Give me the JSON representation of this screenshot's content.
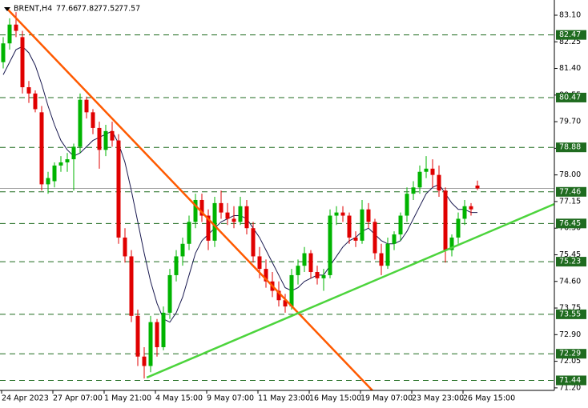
{
  "chart_data": {
    "type": "candlestick",
    "symbol": "BRENT,H4",
    "up_color": "#00b400",
    "down_color": "#e00000",
    "level_color": "#1f6b1f",
    "ma_color": "#1a1a50",
    "xlim": [
      -0.5,
      86
    ],
    "ylim": [
      71.12,
      83.585
    ],
    "yticks": [
      {
        "value": 83.1,
        "label": "83.10"
      },
      82.25,
      {
        "value": 81.4,
        "label": "81.40"
      },
      80.55,
      {
        "value": 79.7,
        "label": "79.70"
      },
      78.85,
      {
        "value": 78,
        "label": "78.00"
      },
      77.15,
      {
        "value": 76.3,
        "label": "76.30"
      },
      75.45,
      {
        "value": 74.6,
        "label": "74.60"
      },
      73.75,
      {
        "value": 72.9,
        "label": "72.90"
      },
      72.05,
      {
        "value": 71.2,
        "label": "71.20"
      }
    ],
    "levels": [
      82.47,
      80.47,
      78.88,
      77.46,
      76.45,
      75.23,
      73.55,
      72.29,
      71.44
    ],
    "current_price": 77.57,
    "categories": [
      "24 Apr 2023",
      null,
      null,
      null,
      null,
      null,
      null,
      null,
      "27 Apr 07:00",
      null,
      null,
      null,
      null,
      null,
      null,
      null,
      "1 May 21:00",
      null,
      null,
      null,
      null,
      null,
      null,
      null,
      "4 May 15:00",
      null,
      null,
      null,
      null,
      null,
      null,
      null,
      "9 May 07:00",
      null,
      null,
      null,
      null,
      null,
      null,
      null,
      "11 May 23:00",
      null,
      null,
      null,
      null,
      null,
      null,
      null,
      "16 May 15:00",
      null,
      null,
      null,
      null,
      null,
      null,
      null,
      "19 May 07:00",
      null,
      null,
      null,
      null,
      null,
      null,
      null,
      "23 May 23:00",
      null,
      null,
      null,
      null,
      null,
      null,
      null,
      "26 May 15:00",
      null,
      null
    ],
    "candles": [
      [
        81.6,
        82.4,
        81.4,
        82.2
      ],
      [
        82.2,
        83.0,
        82.0,
        82.8
      ],
      [
        82.8,
        83.2,
        82.4,
        82.6
      ],
      [
        82.4,
        82.6,
        80.6,
        80.8
      ],
      [
        80.8,
        81.0,
        80.3,
        80.6
      ],
      [
        80.6,
        80.7,
        80.0,
        80.1
      ],
      [
        80.0,
        80.2,
        77.5,
        77.7
      ],
      [
        77.7,
        78.1,
        77.4,
        77.9
      ],
      [
        77.8,
        78.4,
        77.6,
        78.3
      ],
      [
        78.3,
        78.6,
        78.1,
        78.4
      ],
      [
        78.4,
        78.7,
        78.1,
        78.5
      ],
      [
        78.5,
        79.0,
        77.5,
        78.9
      ],
      [
        78.9,
        80.6,
        78.7,
        80.4
      ],
      [
        80.4,
        80.5,
        79.8,
        80.0
      ],
      [
        80.0,
        80.1,
        79.3,
        79.5
      ],
      [
        79.5,
        79.7,
        78.2,
        78.8
      ],
      [
        78.8,
        79.6,
        78.6,
        79.4
      ],
      [
        79.4,
        79.7,
        78.9,
        79.1
      ],
      [
        79.1,
        79.3,
        75.8,
        76.0
      ],
      [
        76.0,
        76.3,
        75.2,
        75.4
      ],
      [
        75.4,
        75.6,
        73.3,
        73.5
      ],
      [
        73.5,
        73.7,
        71.9,
        72.2
      ],
      [
        72.2,
        72.5,
        71.5,
        71.9
      ],
      [
        71.9,
        73.5,
        71.7,
        73.3
      ],
      [
        73.3,
        73.4,
        72.2,
        72.5
      ],
      [
        72.5,
        73.8,
        72.4,
        73.6
      ],
      [
        73.6,
        75.0,
        73.4,
        74.8
      ],
      [
        74.8,
        75.6,
        74.6,
        75.4
      ],
      [
        75.4,
        76.0,
        75.1,
        75.8
      ],
      [
        75.8,
        76.7,
        75.6,
        76.5
      ],
      [
        76.5,
        77.4,
        76.3,
        77.2
      ],
      [
        77.2,
        77.4,
        76.5,
        76.7
      ],
      [
        76.7,
        76.9,
        75.6,
        75.9
      ],
      [
        75.9,
        77.3,
        75.7,
        77.1
      ],
      [
        77.1,
        77.5,
        76.6,
        76.8
      ],
      [
        76.8,
        77.1,
        76.4,
        76.6
      ],
      [
        76.6,
        77.0,
        76.3,
        76.5
      ],
      [
        76.5,
        77.3,
        76.4,
        77.0
      ],
      [
        77.0,
        77.2,
        76.1,
        76.3
      ],
      [
        76.3,
        76.5,
        75.2,
        75.4
      ],
      [
        75.4,
        75.7,
        74.7,
        75.0
      ],
      [
        75.0,
        75.3,
        74.4,
        74.6
      ],
      [
        74.6,
        74.9,
        74.1,
        74.3
      ],
      [
        74.3,
        74.6,
        73.8,
        74.0
      ],
      [
        74.0,
        74.2,
        73.6,
        73.8
      ],
      [
        73.8,
        75.0,
        73.7,
        74.8
      ],
      [
        74.8,
        75.3,
        74.5,
        75.1
      ],
      [
        75.1,
        75.7,
        74.9,
        75.5
      ],
      [
        75.5,
        75.6,
        74.7,
        74.9
      ],
      [
        74.9,
        75.1,
        74.5,
        74.7
      ],
      [
        74.7,
        75.0,
        74.3,
        74.8
      ],
      [
        74.8,
        76.9,
        74.7,
        76.7
      ],
      [
        76.7,
        77.0,
        76.4,
        76.8
      ],
      [
        76.8,
        77.0,
        76.5,
        76.7
      ],
      [
        76.7,
        76.8,
        75.8,
        76.0
      ],
      [
        76.0,
        76.2,
        75.7,
        75.9
      ],
      [
        75.9,
        77.2,
        75.8,
        76.9
      ],
      [
        76.9,
        77.1,
        76.3,
        76.5
      ],
      [
        76.5,
        76.6,
        75.3,
        75.5
      ],
      [
        75.5,
        75.8,
        74.8,
        75.1
      ],
      [
        75.1,
        76.0,
        75.0,
        75.8
      ],
      [
        75.8,
        76.2,
        75.6,
        76.1
      ],
      [
        76.1,
        76.8,
        75.9,
        76.7
      ],
      [
        76.7,
        77.6,
        76.5,
        77.4
      ],
      [
        77.4,
        77.8,
        77.2,
        77.6
      ],
      [
        77.6,
        78.3,
        77.4,
        78.1
      ],
      [
        78.1,
        78.6,
        77.9,
        78.2
      ],
      [
        78.2,
        78.5,
        77.6,
        78.0
      ],
      [
        78.0,
        78.3,
        77.3,
        77.5
      ],
      [
        77.5,
        77.6,
        75.2,
        75.6
      ],
      [
        75.6,
        76.1,
        75.4,
        76.0
      ],
      [
        76.0,
        76.8,
        75.8,
        76.6
      ],
      [
        76.6,
        77.2,
        76.4,
        77.0
      ],
      [
        77.0,
        77.1,
        76.7,
        76.9
      ],
      [
        77.66,
        77.82,
        77.52,
        77.57
      ]
    ],
    "ma_values": [
      81.2,
      81.6,
      82.0,
      82.1,
      81.9,
      81.5,
      80.9,
      80.2,
      79.6,
      79.1,
      78.8,
      78.6,
      78.7,
      78.9,
      79.1,
      79.2,
      79.3,
      79.4,
      79.0,
      78.4,
      77.5,
      76.5,
      75.5,
      74.6,
      73.9,
      73.4,
      73.3,
      73.6,
      74.1,
      74.8,
      75.5,
      75.9,
      76.1,
      76.3,
      76.5,
      76.6,
      76.7,
      76.7,
      76.6,
      76.3,
      76.0,
      75.6,
      75.2,
      74.8,
      74.4,
      74.3,
      74.4,
      74.6,
      74.7,
      74.8,
      74.8,
      75.1,
      75.4,
      75.7,
      75.9,
      76.0,
      76.2,
      76.3,
      76.1,
      75.9,
      75.8,
      75.8,
      75.9,
      76.2,
      76.6,
      77.0,
      77.4,
      77.6,
      77.7,
      77.4,
      77.1,
      76.9,
      76.9,
      76.8,
      76.8
    ],
    "trendlines": [
      {
        "color": "#ff5a00",
        "x": [
          0.5,
          57.6
        ],
        "y": [
          83.33,
          71.12
        ]
      },
      {
        "color": "#4cd43c",
        "x": [
          22.4,
          86
        ],
        "y": [
          71.53,
          77.07
        ]
      }
    ]
  }
}
